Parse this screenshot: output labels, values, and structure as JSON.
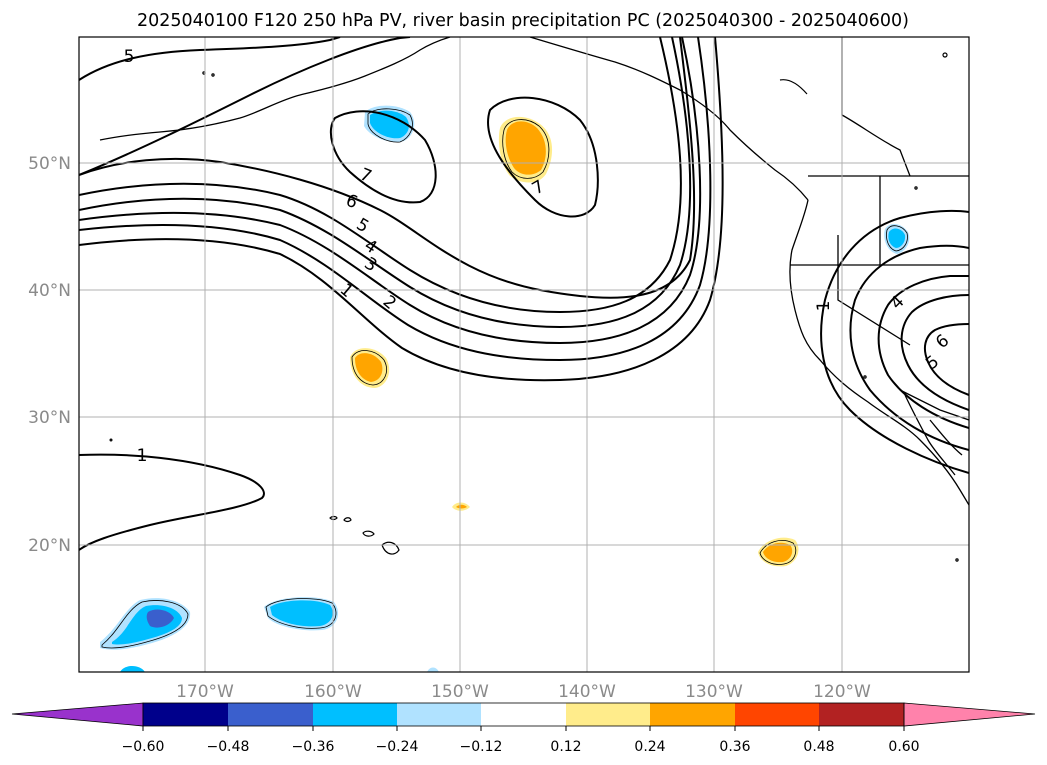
{
  "title": "2025040100 F120 250 hPa PV, river basin precipitation PC (2025040300 - 2025040600)",
  "map": {
    "projection": "Plate Carrée",
    "lat_labels": [
      "50°N",
      "40°N",
      "30°N",
      "20°N"
    ],
    "lon_labels": [
      "170°W",
      "160°W",
      "150°W",
      "140°W",
      "130°W",
      "120°W"
    ],
    "grid": true
  },
  "pv_contour_labels": [
    "5",
    "7",
    "6",
    "5",
    "4",
    "3",
    "2",
    "1",
    "7",
    "1",
    "1",
    "4",
    "5",
    "6"
  ],
  "colorbar": {
    "tick_labels": [
      "−0.60",
      "−0.48",
      "−0.36",
      "−0.24",
      "−0.12",
      "0.12",
      "0.24",
      "0.36",
      "0.48",
      "0.60"
    ],
    "colors": [
      "#9932CC",
      "#00008B",
      "#3A5FCD",
      "#00BFFF",
      "#B0E2FF",
      "#FFFFFF",
      "#FFEC8B",
      "#FFA500",
      "#FF4500",
      "#B22222",
      "#FF82AB"
    ],
    "extend": "both"
  }
}
